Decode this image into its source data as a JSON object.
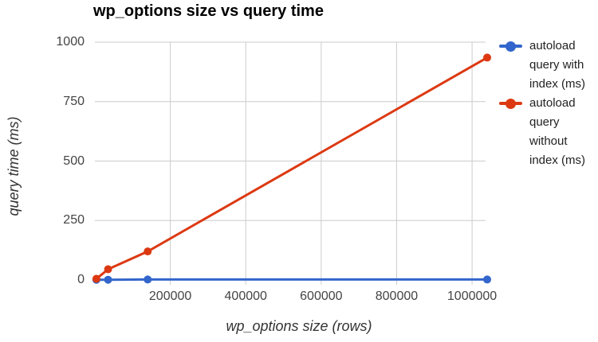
{
  "chart_data": {
    "type": "line",
    "title": "wp_options size vs query time",
    "xlabel": "wp_options size (rows)",
    "ylabel": "query time (ms)",
    "x": [
      4000,
      35000,
      140000,
      1040000
    ],
    "series": [
      {
        "name": "autoload query with index (ms)",
        "color": "#3366cc",
        "values": [
          1,
          1,
          2,
          2
        ]
      },
      {
        "name": "autoload query without index (ms)",
        "color": "#dc3912",
        "values": [
          5,
          45,
          120,
          935
        ]
      }
    ],
    "xlim": [
      0,
      1040000
    ],
    "ylim": [
      0,
      1000
    ],
    "x_ticks": [
      {
        "value": 200000,
        "label": "200000"
      },
      {
        "value": 400000,
        "label": "400000"
      },
      {
        "value": 600000,
        "label": "600000"
      },
      {
        "value": 800000,
        "label": "800000"
      },
      {
        "value": 1000000,
        "label": "1000000"
      }
    ],
    "y_ticks": [
      {
        "value": 0,
        "label": "0"
      },
      {
        "value": 250,
        "label": "250"
      },
      {
        "value": 500,
        "label": "500"
      },
      {
        "value": 750,
        "label": "750"
      },
      {
        "value": 1000,
        "label": "1000"
      }
    ],
    "grid": true,
    "legend_position": "right",
    "colors": {
      "gridline": "#cccccc",
      "tick_label": "#444444",
      "axis_title": "#333333",
      "title": "#000000",
      "background": "#ffffff"
    }
  }
}
